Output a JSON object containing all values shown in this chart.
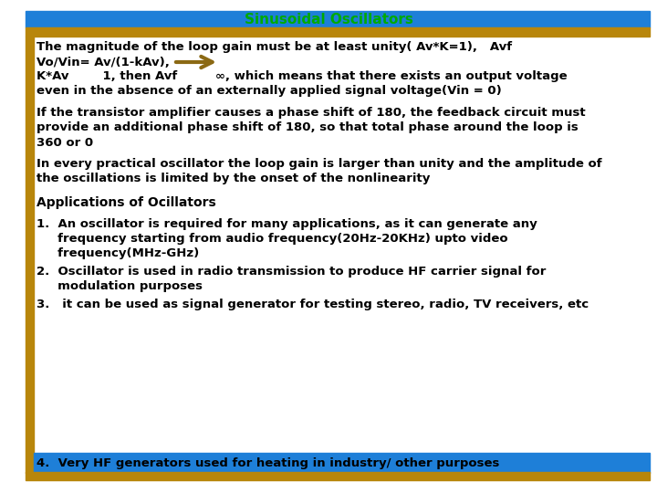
{
  "title": "Sinusoidal Oscillators",
  "title_color": "#00AA00",
  "header_bar_blue": "#1E7FD8",
  "header_bar_gold": "#B8860B",
  "bg_color": "#FFFFFF",
  "last_line_highlight_blue": "#1E7FD8",
  "last_line_text_color": "#000000",
  "arrow_color": "#8B6914",
  "text_color": "#000000",
  "bold_line1": "The magnitude of the loop gain must be at least unity( Av*K=1),   Avf",
  "bold_line2": "Vo/Vin= Av/(1-kAv),",
  "bold_line3": "K*Av        1, then Avf         ∞, which means that there exists an output voltage",
  "bold_line4": "even in the absence of an externally applied signal voltage(Vin = 0)",
  "para2_line1": "If the transistor amplifier causes a phase shift of 180, the feedback circuit must",
  "para2_line2": "provide an additional phase shift of 180, so that total phase around the loop is",
  "para2_line3": "360 or 0",
  "para3_line1": "In every practical oscillator the loop gain is larger than unity and the amplitude of",
  "para3_line2": "the oscillations is limited by the onset of the nonlinearity",
  "heading2": "Applications of Ocillators",
  "item1_line1": "1.  An oscillator is required for many applications, as it can generate any",
  "item1_line2": "     frequency starting from audio frequency(20Hz-20KHz) upto video",
  "item1_line3": "     frequency(MHz-GHz)",
  "item2_line1": "2.  Oscillator is used in radio transmission to produce HF carrier signal for",
  "item2_line2": "     modulation purposes",
  "item3": "3.   it can be used as signal generator for testing stereo, radio, TV receivers, etc",
  "item4": "4.  Very HF generators used for heating in industry/ other purposes",
  "fontsize": 9.5,
  "title_fontsize": 11,
  "heading2_fontsize": 10
}
